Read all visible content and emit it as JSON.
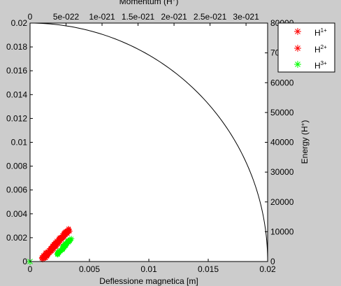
{
  "colors": {
    "figure_bg": "#cccccc",
    "axes_bg": "#ffffff",
    "h1": "#ff0000",
    "h2": "#ff0000",
    "h3": "#00ff00",
    "curve": "#000000"
  },
  "chart_data": {
    "type": "scatter",
    "xlabel": "Deflessione magnetica [m]",
    "ylabel": "",
    "x2label": "Momentum (H",
    "x2label_sup": "+",
    "x2label_end": ")",
    "y2label": "Energy (H",
    "y2label_sup": "+",
    "y2label_end": ")",
    "xlim": [
      0,
      0.02
    ],
    "ylim": [
      0,
      0.02
    ],
    "x_ticks": [
      "0",
      "0.005",
      "0.01",
      "0.015",
      "0.02"
    ],
    "y_ticks": [
      "0",
      "0.002",
      "0.004",
      "0.006",
      "0.008",
      "0.01",
      "0.012",
      "0.014",
      "0.016",
      "0.018",
      "0.02"
    ],
    "x2lim": [
      0,
      3.3e-21
    ],
    "x2_ticks": [
      {
        "label": "0",
        "value": 0
      },
      {
        "label": "5e-022",
        "value": 5e-22
      },
      {
        "label": "1e-021",
        "value": 1e-21
      },
      {
        "label": "1.5e-021",
        "value": 1.5e-21
      },
      {
        "label": "2e-021",
        "value": 2e-21
      },
      {
        "label": "2.5e-021",
        "value": 2.5e-21
      },
      {
        "label": "3e-021",
        "value": 3e-21
      }
    ],
    "y2lim": [
      0,
      80000
    ],
    "y2_ticks": [
      "0",
      "10000",
      "20000",
      "30000",
      "40000",
      "50000",
      "60000",
      "70000",
      "80000"
    ],
    "grid": false,
    "legend_position": "top-right",
    "series": [
      {
        "name": "H",
        "sup": "1+",
        "color": "#ff0000",
        "marker": "asterisk",
        "x_range": [
          0.001,
          0.0034
        ],
        "y_range": [
          0.0002,
          0.0028
        ]
      },
      {
        "name": "H",
        "sup": "2+",
        "color": "#ff0000",
        "marker": "asterisk",
        "x_range": [
          0.0011,
          0.0033
        ],
        "y_range": [
          0.0002,
          0.0027
        ]
      },
      {
        "name": "H",
        "sup": "3+",
        "color": "#00ff00",
        "marker": "asterisk",
        "x_range": [
          0.0023,
          0.0035
        ],
        "y_range": [
          0.0006,
          0.002
        ]
      }
    ],
    "origin_point": {
      "x": 0,
      "y": 0,
      "color": "#00ff00"
    },
    "curve": {
      "description_type": "quarter-circle",
      "radius": 0.02
    }
  }
}
